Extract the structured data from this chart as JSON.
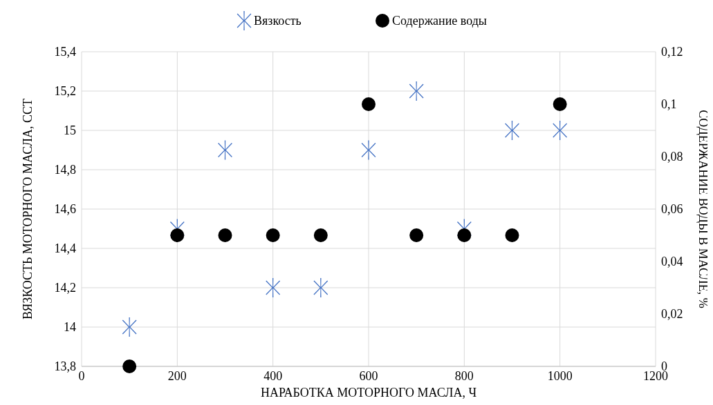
{
  "chart_data": {
    "type": "scatter",
    "xlabel": "НАРАБОТКА МОТОРНОГО МАСЛА, Ч",
    "ylabel": "ВЯЗКОСТЬ МОТОРНОГО МАСЛА, ССТ",
    "y2label": "СОДЕРЖАНИЕ ВОДЫ В МАСЛЕ, %",
    "x": [
      100,
      200,
      300,
      400,
      500,
      600,
      700,
      800,
      900,
      1000
    ],
    "series": [
      {
        "name": "Вязкость",
        "color": "#4472c4",
        "marker": "cross",
        "values": [
          14,
          14.5,
          14.9,
          14.2,
          14.2,
          14.9,
          15.2,
          14.5,
          15,
          15
        ]
      },
      {
        "name": "Содержание воды",
        "color": "#000000",
        "marker": "circle",
        "axis": "y2",
        "values": [
          0,
          0.05,
          0.05,
          0.05,
          0.05,
          0.1,
          0.05,
          0.05,
          0.05,
          0.1
        ]
      }
    ],
    "xlim": [
      0,
      1200
    ],
    "xticks": [
      0,
      200,
      400,
      600,
      800,
      1000,
      1200
    ],
    "ylim": [
      13.8,
      15.4
    ],
    "yticks": [
      {
        "value": 13.8,
        "label": "13,8"
      },
      {
        "value": 14,
        "label": "14"
      },
      {
        "value": 14.2,
        "label": "14,2"
      },
      {
        "value": 14.4,
        "label": "14,4"
      },
      {
        "value": 14.6,
        "label": "14,6"
      },
      {
        "value": 14.8,
        "label": "14,8"
      },
      {
        "value": 15,
        "label": "15"
      },
      {
        "value": 15.2,
        "label": "15,2"
      },
      {
        "value": 15.4,
        "label": "15,4"
      }
    ],
    "y2lim": [
      0,
      0.12
    ],
    "y2ticks": [
      0,
      {
        "value": 0.02,
        "label": "0,02"
      },
      {
        "value": 0.04,
        "label": "0,04"
      },
      {
        "value": 0.06,
        "label": "0,06"
      },
      {
        "value": 0.08,
        "label": "0,08"
      },
      {
        "value": 0.1,
        "label": "0,1"
      },
      {
        "value": 0.12,
        "label": "0,12"
      }
    ],
    "grid": true,
    "legend": "top"
  }
}
